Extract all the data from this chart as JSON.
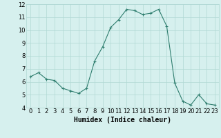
{
  "x": [
    0,
    1,
    2,
    3,
    4,
    5,
    6,
    7,
    8,
    9,
    10,
    11,
    12,
    13,
    14,
    15,
    16,
    17,
    18,
    19,
    20,
    21,
    22,
    23
  ],
  "y": [
    6.4,
    6.7,
    6.2,
    6.1,
    5.5,
    5.3,
    5.1,
    5.5,
    7.6,
    8.7,
    10.2,
    10.8,
    11.6,
    11.5,
    11.2,
    11.3,
    11.6,
    10.3,
    5.9,
    4.5,
    4.2,
    5.0,
    4.3,
    4.2
  ],
  "line_color": "#2e7d6e",
  "marker": "+",
  "bg_color": "#d6f0ee",
  "grid_color": "#b0d8d4",
  "xlabel": "Humidex (Indice chaleur)",
  "xlabel_fontsize": 7,
  "tick_fontsize": 6,
  "ylim": [
    4,
    12
  ],
  "yticks": [
    4,
    5,
    6,
    7,
    8,
    9,
    10,
    11,
    12
  ],
  "xticks": [
    0,
    1,
    2,
    3,
    4,
    5,
    6,
    7,
    8,
    9,
    10,
    11,
    12,
    13,
    14,
    15,
    16,
    17,
    18,
    19,
    20,
    21,
    22,
    23
  ]
}
